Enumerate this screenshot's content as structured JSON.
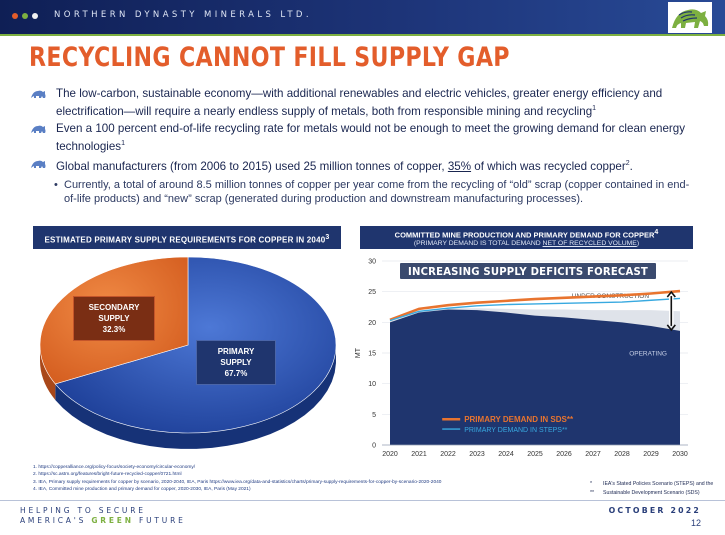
{
  "header": {
    "company": "NORTHERN DYNASTY MINERALS LTD.",
    "dot_colors": [
      "#e35d2b",
      "#7db041",
      "#f1f1f1"
    ]
  },
  "title": "RECYCLING CANNOT FILL SUPPLY GAP",
  "bullets": [
    {
      "text": "The low-carbon, sustainable economy—with additional renewables and electric vehicles, greater energy efficiency and electrification—will require a nearly endless supply of metals, both from responsible mining and recycling",
      "sup": "1"
    },
    {
      "text": "Even a 100 percent end-of-life recycling rate for metals would not be enough to meet the growing demand for clean energy technologies",
      "sup": "1"
    },
    {
      "text_before": "Global manufacturers (from 2006 to 2015) used 25 million tonnes of copper, ",
      "underlined": "35%",
      "text_after": " of which was recycled copper",
      "sup": "2",
      "end": "."
    }
  ],
  "sub_bullet": "Currently, a total of around 8.5 million tonnes of copper per year come from the recycling of “old” scrap (copper contained in end-of-life products) and “new” scrap (generated during production and downstream manufacturing processes).",
  "left_panel": {
    "header": "ESTIMATED PRIMARY SUPPLY REQUIREMENTS FOR COPPER IN 2040",
    "header_sup": "3"
  },
  "right_panel": {
    "header_line1": "COMMITTED MINE PRODUCTION AND PRIMARY DEMAND FOR COPPER",
    "header_sup": "4",
    "header_line2_prefix": "(PRIMARY DEMAND IS TOTAL DEMAND ",
    "header_line2_underlined": "NET OF RECYCLED VOLUME",
    "header_line2_suffix": ")"
  },
  "chart_data": [
    {
      "type": "pie",
      "slices": [
        {
          "label": "PRIMARY SUPPLY",
          "value": 67.7,
          "display": "67.7%",
          "color": "#2d55b8"
        },
        {
          "label": "SECONDARY SUPPLY",
          "value": 32.3,
          "display": "32.3%",
          "color": "#e8742f"
        }
      ]
    },
    {
      "type": "area",
      "x": [
        2020,
        2021,
        2022,
        2023,
        2024,
        2025,
        2026,
        2027,
        2028,
        2029,
        2030
      ],
      "ylabel": "MT",
      "ylim": [
        0,
        30
      ],
      "yticks": [
        0,
        5,
        10,
        15,
        20,
        25,
        30
      ],
      "banner": "INCREASING SUPPLY DEFICITS FORECAST",
      "areas": [
        {
          "name": "UNDER CONSTRUCTION",
          "values": [
            20.2,
            21.8,
            22.3,
            22.3,
            22.2,
            22.1,
            22.1,
            22.0,
            22.0,
            22.0,
            21.8
          ],
          "color": "#dfe3ea"
        },
        {
          "name": "OPERATING",
          "values": [
            20.0,
            21.6,
            22.1,
            22.0,
            21.6,
            21.1,
            20.8,
            20.4,
            20.0,
            19.4,
            18.6
          ],
          "color": "#1f356e"
        }
      ],
      "series": [
        {
          "name": "PRIMARY DEMAND IN SDS**",
          "values": [
            20.4,
            22.2,
            22.8,
            23.2,
            23.5,
            23.8,
            24.0,
            24.2,
            24.4,
            24.7,
            25.1
          ],
          "color": "#e8742f"
        },
        {
          "name": "PRIMARY DEMAND IN STEPS**",
          "values": [
            20.3,
            21.8,
            22.3,
            22.7,
            22.9,
            23.0,
            23.1,
            23.2,
            23.3,
            23.6,
            23.9
          ],
          "color": "#38a9e0"
        }
      ]
    }
  ],
  "footnotes": [
    "1.  https://copperalliance.org/policy-focus/society-economy/circular-economy/",
    "2.  https://sc.astm.org/features/bright-future-recycled-copper/0721.html",
    "3.  IEA, Primary supply requirements for copper by scenario, 2020-2040, IEA, Paris https://www.iea.org/data-and-statistics/charts/primary-supply-requirements-for-copper-by-scenario-2020-2040",
    "4.  IEA, Committed mine production and primary demand for copper, 2020-2030, IEA, Paris (May 2021)"
  ],
  "legend_notes": [
    {
      "key": "*",
      "text": "IEA's Stated Policies Scenario (STEPS) and the"
    },
    {
      "key": "**",
      "text": "Sustainable Development Scenario (SDS)"
    }
  ],
  "footer": {
    "tag_line1": "HELPING TO SECURE",
    "tag_line2_a": "AMERICA'S ",
    "tag_line2_b": "GREEN",
    "tag_line2_c": " FUTURE",
    "date": "OCTOBER 2022",
    "page": "12"
  }
}
